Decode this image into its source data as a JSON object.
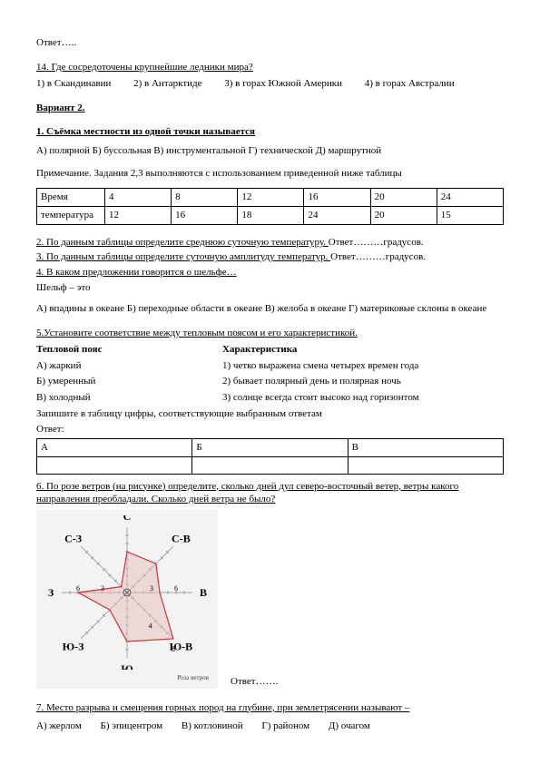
{
  "answer_dots": "Ответ…..",
  "q14_title": "14. Где сосредоточены крупнейшие ледники мира?",
  "q14_opts": [
    "1) в Скандинавии",
    "2) в Антарктиде",
    "3) в горах Южной Америки",
    "4) в горах Австралии"
  ],
  "variant": "Вариант 2.",
  "q1_title": "1. Съёмка местности из одной точки называется",
  "q1_opts": "А) полярной  Б) буссольная  В) инструментальной  Г) технической  Д) маршрутной",
  "note": "Примечание. Задания 2,3 выполняются с использованием приведенной ниже таблицы",
  "t1": {
    "h": [
      "Время",
      "4",
      "8",
      "12",
      "16",
      "20",
      "24"
    ],
    "r": [
      "температура",
      "12",
      "16",
      "18",
      "24",
      "20",
      "15"
    ]
  },
  "q2": "2. По данным таблицы определите среднюю суточную температуру. ",
  "q2_tail": "Ответ………градусов.",
  "q3": "3. По данным таблицы определите суточную амплитуду температур. ",
  "q3_tail": "Ответ………градусов.",
  "q4": "4. В каком предложении говорится о шельфе…",
  "shelf": "Шельф – это",
  "q4_opts": "А) впадины в океане  Б) переходные области в океане  В) желоба в океане  Г) материковые склоны в океане",
  "q5_title": "5.Установите соответствие между тепловым поясом и его характеристикой.",
  "q5_h": [
    "Тепловой пояс",
    "Характеристика"
  ],
  "q5_rows": [
    [
      "А) жаркий",
      "1) четко выражена смена четырех времен года"
    ],
    [
      "Б) умеренный",
      "2) бывает полярный день и полярная ночь"
    ],
    [
      "В) холодный",
      "3) солнце всегда стоит высоко над горизонтом"
    ]
  ],
  "q5_write": "Запишите в таблицу цифры, соответствующие выбранным ответам",
  "q5_answer": "Ответ:",
  "abv": [
    "А",
    "Б",
    "В"
  ],
  "q6": "6. По розе ветров (на рисунке) определите, сколько дней дул северо-восточный ветер, ветры какого направления преобладали. Сколько дней ветра не было?",
  "rose": {
    "dirs": {
      "N": "С",
      "NE": "С-В",
      "E": "В",
      "SE": "Ю-В",
      "S": "Ю",
      "SW": "Ю-З",
      "W": "З",
      "NW": "С-З"
    },
    "values": {
      "N": 5,
      "NE": 5,
      "E": 4,
      "SE": 8,
      "S": 6,
      "SW": 3,
      "W": 6,
      "NW": 1
    },
    "tick_labels": {
      "W": [
        "3",
        "6"
      ],
      "E": [
        "3",
        "6"
      ],
      "SE": [
        "4",
        "8"
      ]
    },
    "colors": {
      "axis": "#888",
      "line": "#c33",
      "fill": "#e7bdbd",
      "text": "#000",
      "bg": "#f3f3f3",
      "calm": "#444"
    },
    "caption": "Роза ветров"
  },
  "answer2": "Ответ…….",
  "q7_title": "7. Место разрыва и смещения горных пород на глубине, при землетрясении называют –",
  "q7_opts": [
    "А) жерлом",
    "Б) эпицентром",
    "В) котловиной",
    "Г) районом",
    "Д) очагом"
  ]
}
